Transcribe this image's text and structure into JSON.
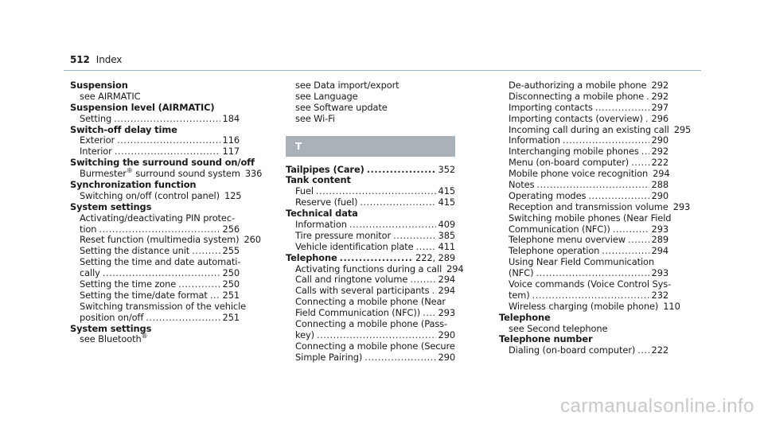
{
  "header": {
    "page_number": "512",
    "title": "Index"
  },
  "watermark": "carmanualsonline.info",
  "col1": [
    {
      "type": "heading",
      "text": "Suspension"
    },
    {
      "type": "text",
      "text": "see AIRMATIC"
    },
    {
      "type": "heading",
      "text": "Suspension level (AIRMATIC)"
    },
    {
      "type": "entry",
      "label": "Setting",
      "page": "184"
    },
    {
      "type": "heading",
      "text": "Switch-off delay time"
    },
    {
      "type": "entry",
      "label": "Exterior",
      "page": "116"
    },
    {
      "type": "entry",
      "label": "Interior",
      "page": "117"
    },
    {
      "type": "heading",
      "text": "Switching the surround sound on/off"
    },
    {
      "type": "entry",
      "label": "Burmester® surround sound system",
      "page": "336"
    },
    {
      "type": "heading",
      "text": "Synchronization function"
    },
    {
      "type": "entry",
      "label": "Switching on/off (control panel)",
      "page": "125"
    },
    {
      "type": "heading",
      "text": "System settings"
    },
    {
      "type": "text",
      "text": "Activating/deactivating PIN protec-"
    },
    {
      "type": "entry",
      "label": "tion",
      "page": "256"
    },
    {
      "type": "entry",
      "label": "Reset function (multimedia system)",
      "page": "260"
    },
    {
      "type": "entry",
      "label": "Setting the distance unit",
      "page": "255"
    },
    {
      "type": "text",
      "text": "Setting the time and date automati-"
    },
    {
      "type": "entry",
      "label": "cally",
      "page": "250"
    },
    {
      "type": "entry",
      "label": "Setting the time zone",
      "page": "250"
    },
    {
      "type": "entry",
      "label": "Setting the time/date format",
      "page": "251"
    },
    {
      "type": "text",
      "text": "Switching transmission of the vehicle"
    },
    {
      "type": "entry",
      "label": "position on/off",
      "page": "251"
    },
    {
      "type": "heading",
      "text": "System settings"
    },
    {
      "type": "text",
      "text": "see Bluetooth®"
    }
  ],
  "col2": [
    {
      "type": "text",
      "text": "see Data import/export"
    },
    {
      "type": "text",
      "text": "see Language"
    },
    {
      "type": "text",
      "text": "see Software update"
    },
    {
      "type": "text",
      "text": "see Wi-Fi"
    },
    {
      "type": "section",
      "text": "T"
    },
    {
      "type": "hentry",
      "label": "Tailpipes (Care)",
      "page": "352"
    },
    {
      "type": "heading",
      "text": "Tank content"
    },
    {
      "type": "entry",
      "label": "Fuel",
      "page": "415"
    },
    {
      "type": "entry",
      "label": "Reserve (fuel)",
      "page": "415"
    },
    {
      "type": "heading",
      "text": "Technical data"
    },
    {
      "type": "entry",
      "label": "Information",
      "page": "409"
    },
    {
      "type": "entry",
      "label": "Tire pressure monitor",
      "page": "385"
    },
    {
      "type": "entry",
      "label": "Vehicle identification plate",
      "page": "411"
    },
    {
      "type": "hentry",
      "label": "Telephone",
      "page": "222, 289"
    },
    {
      "type": "entry",
      "label": "Activating functions during a call",
      "page": "294"
    },
    {
      "type": "entry",
      "label": "Call and ringtone volume",
      "page": "294"
    },
    {
      "type": "entry",
      "label": "Calls with several participants",
      "page": "294"
    },
    {
      "type": "text",
      "text": "Connecting a mobile phone (Near"
    },
    {
      "type": "entry",
      "label": "Field Communication (NFC))",
      "page": "293"
    },
    {
      "type": "text",
      "text": "Connecting a mobile phone (Pass-"
    },
    {
      "type": "entry",
      "label": "key)",
      "page": "290"
    },
    {
      "type": "text",
      "text": "Connecting a mobile phone (Secure"
    },
    {
      "type": "entry",
      "label": "Simple Pairing)",
      "page": "290"
    }
  ],
  "col3": [
    {
      "type": "entry",
      "label": "De-authorizing a mobile phone",
      "page": "292"
    },
    {
      "type": "entry",
      "label": "Disconnecting a mobile phone",
      "page": "292"
    },
    {
      "type": "entry",
      "label": "Importing contacts",
      "page": "297"
    },
    {
      "type": "entry",
      "label": "Importing contacts (overview)",
      "page": "296"
    },
    {
      "type": "entry",
      "label": "Incoming call during an existing call",
      "page": "295"
    },
    {
      "type": "entry",
      "label": "Information",
      "page": "290"
    },
    {
      "type": "entry",
      "label": "Interchanging mobile phones",
      "page": "292"
    },
    {
      "type": "entry",
      "label": "Menu (on-board computer)",
      "page": "222"
    },
    {
      "type": "entry",
      "label": "Mobile phone voice recognition",
      "page": "294"
    },
    {
      "type": "entry",
      "label": "Notes",
      "page": "288"
    },
    {
      "type": "entry",
      "label": "Operating modes",
      "page": "290"
    },
    {
      "type": "entry",
      "label": "Reception and transmission volume",
      "page": "293"
    },
    {
      "type": "text",
      "text": "Switching mobile phones (Near Field"
    },
    {
      "type": "entry",
      "label": "Communication (NFC))",
      "page": "293"
    },
    {
      "type": "entry",
      "label": "Telephone menu overview",
      "page": "289"
    },
    {
      "type": "entry",
      "label": "Telephone operation",
      "page": "294"
    },
    {
      "type": "text",
      "text": "Using Near Field Communication"
    },
    {
      "type": "entry",
      "label": "(NFC)",
      "page": "293"
    },
    {
      "type": "text",
      "text": "Voice commands (Voice Control Sys-"
    },
    {
      "type": "entry",
      "label": "tem)",
      "page": "232"
    },
    {
      "type": "entry",
      "label": "Wireless charging (mobile phone)",
      "page": "110"
    },
    {
      "type": "heading",
      "text": "Telephone"
    },
    {
      "type": "text",
      "text": "see Second telephone"
    },
    {
      "type": "heading",
      "text": "Telephone number"
    },
    {
      "type": "entry",
      "label": "Dialing (on-board computer)",
      "page": "222"
    }
  ]
}
